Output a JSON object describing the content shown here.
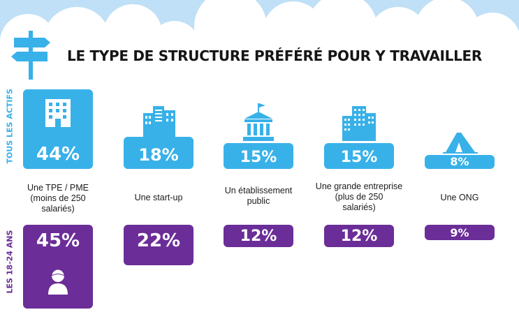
{
  "title": "LE TYPE DE STRUCTURE PRÉFÉRÉ POUR Y TRAVAILLER",
  "row_labels": {
    "all": "TOUS LES ACTIFS",
    "young": "LES 18-24 ANS"
  },
  "colors": {
    "all": "#38b1e9",
    "young": "#6b2d97"
  },
  "categories": [
    {
      "lines": [
        "Une TPE / PME",
        "(moins de 250",
        "salariés)"
      ],
      "icon": "office-building-icon",
      "all": "44%",
      "young": "45%",
      "young_icon": "person-icon"
    },
    {
      "lines": [
        "Une start-up"
      ],
      "icon": "city-buildings-icon",
      "all": "18%",
      "young": "22%"
    },
    {
      "lines": [
        "Un établissement",
        "public"
      ],
      "icon": "public-building-icon",
      "all": "15%",
      "young": "12%"
    },
    {
      "lines": [
        "Une grande entreprise",
        "(plus de 250",
        "salariés)"
      ],
      "icon": "skyscraper-icon",
      "all": "15%",
      "young": "12%"
    },
    {
      "lines": [
        "Une ONG"
      ],
      "icon": "tent-icon",
      "all": "8%",
      "young": "9%"
    }
  ]
}
